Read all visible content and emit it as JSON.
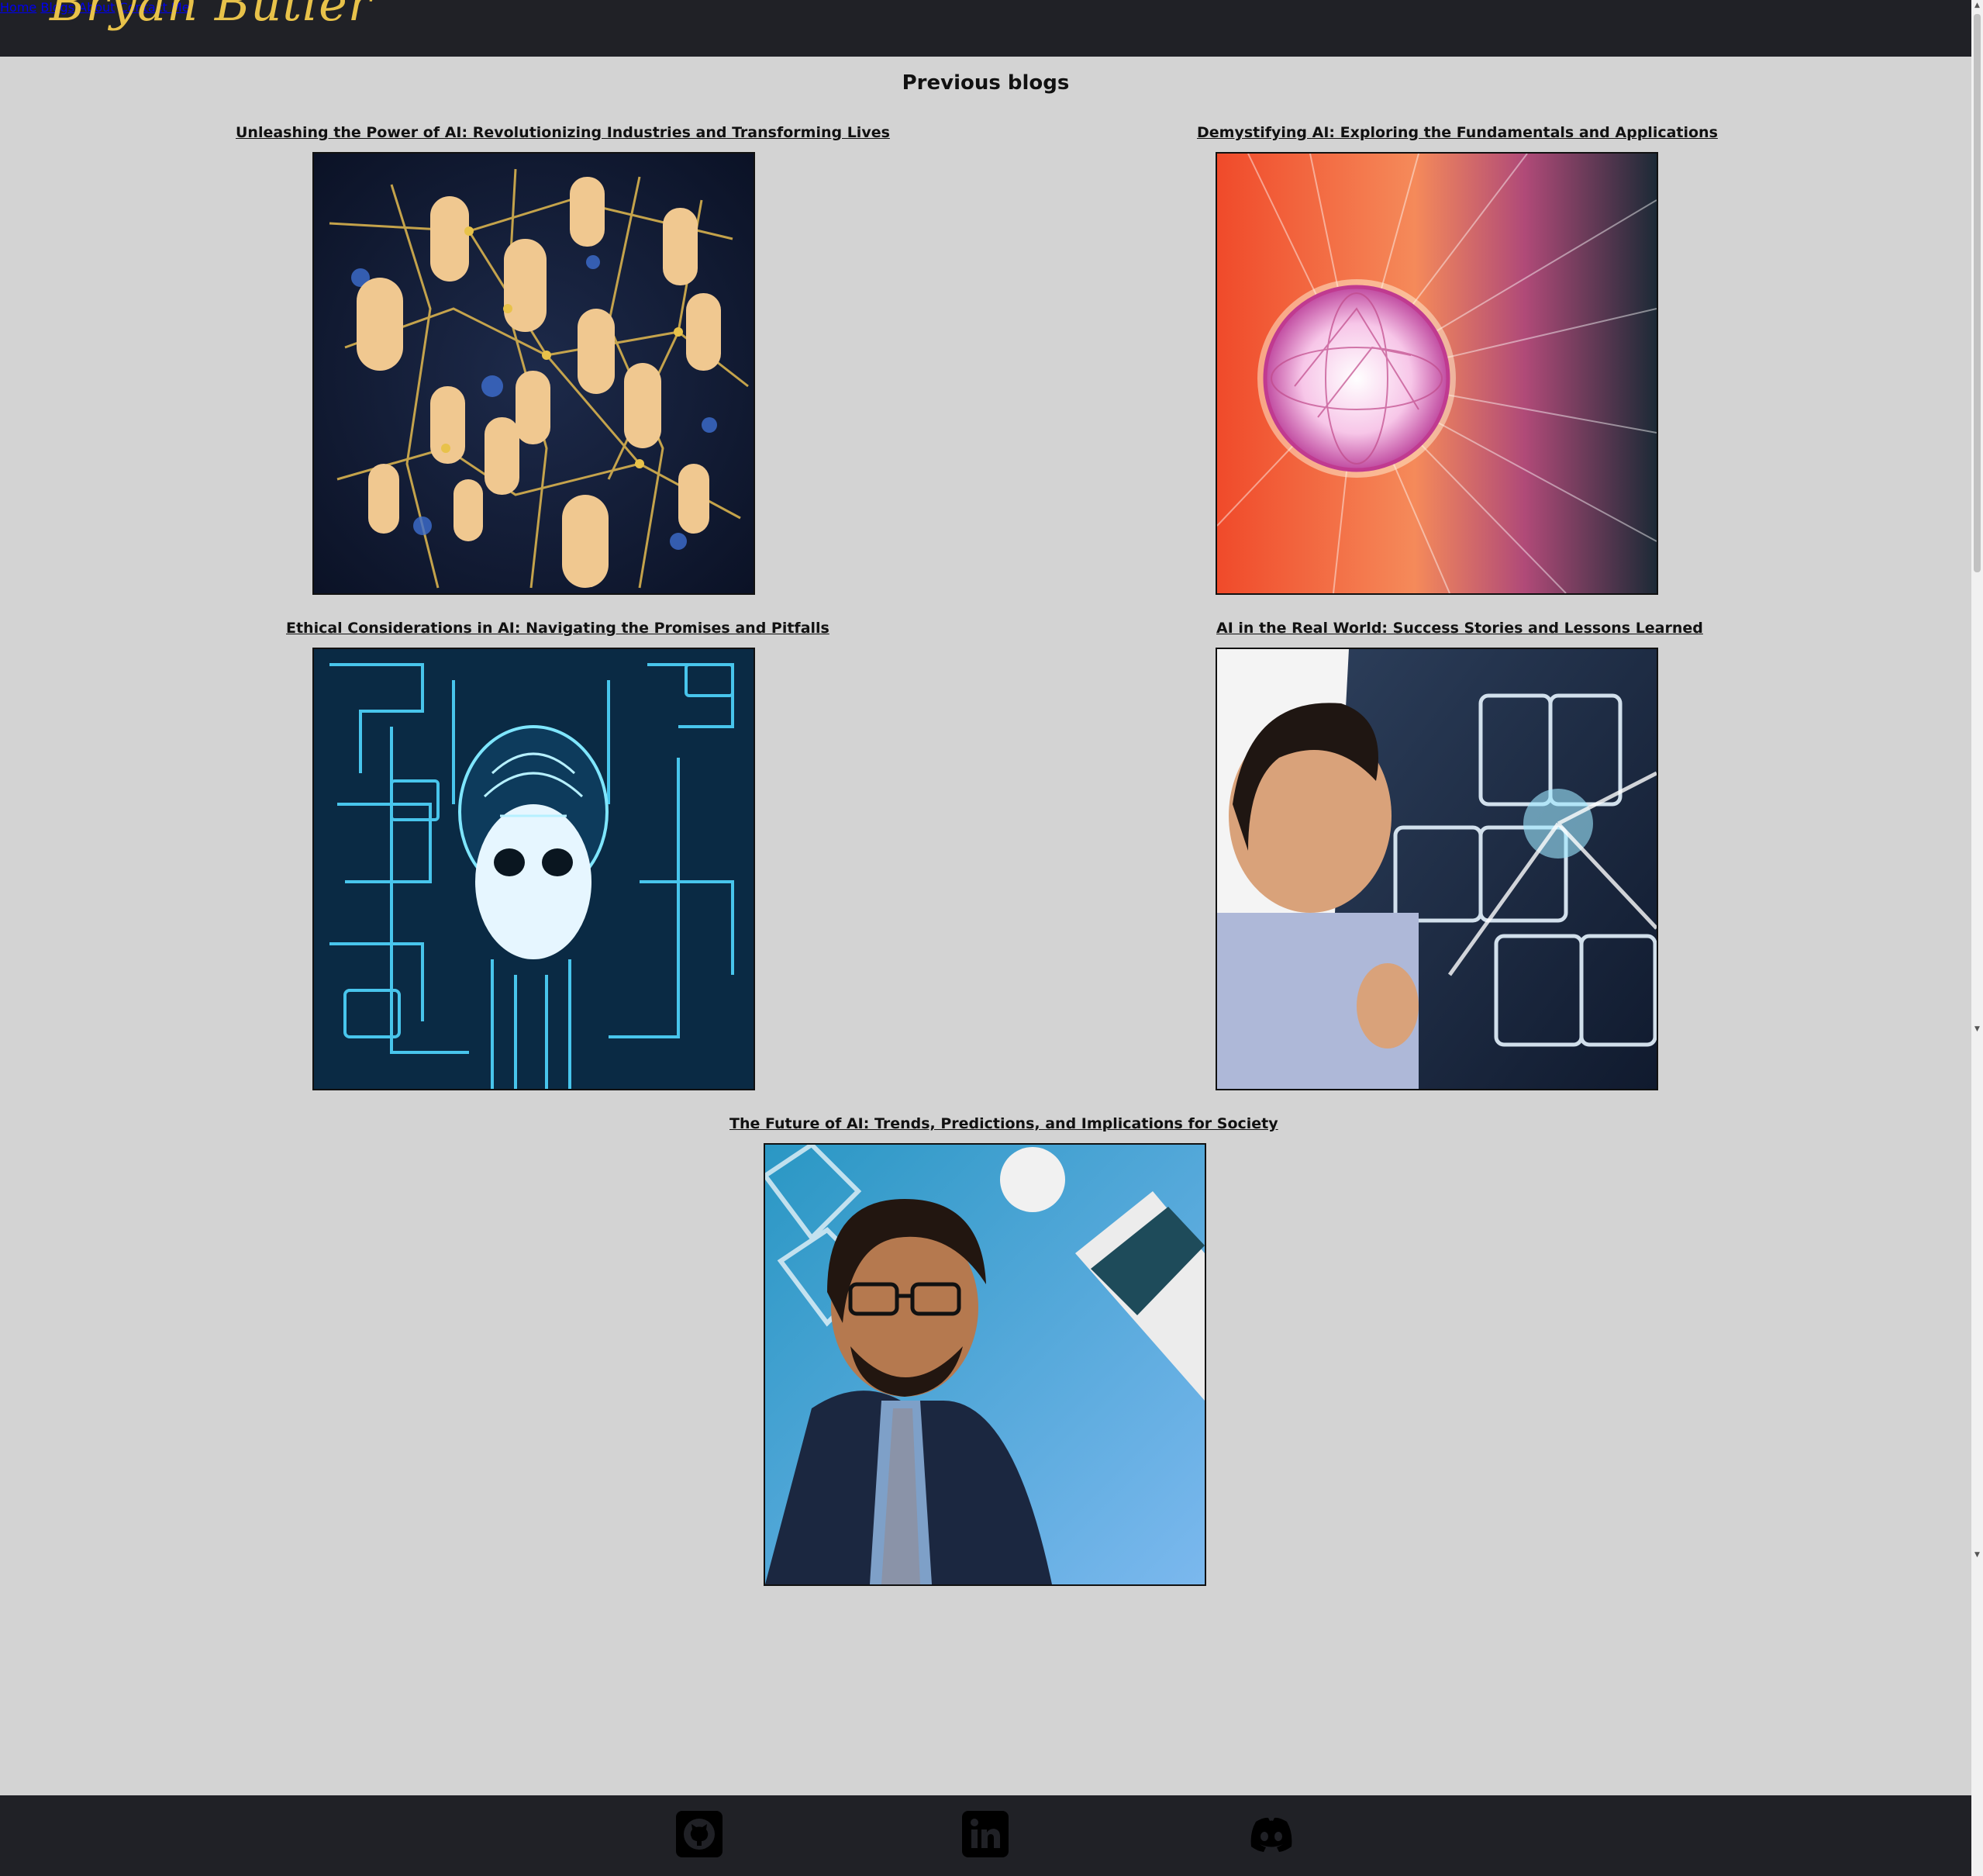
{
  "header": {
    "brand": "Bryan Butler",
    "nav": [
      "Home",
      "Blogs",
      "About",
      "Contact Me"
    ]
  },
  "main": {
    "section_title": "Previous blogs",
    "posts": [
      {
        "title": "Unleashing the Power of AI: Revolutionizing Industries and Transforming Lives",
        "image": "network-of-people-illustration"
      },
      {
        "title": "Demystifying AI: Exploring the Fundamentals and Applications",
        "image": "glowing-sphere-illustration"
      },
      {
        "title": "Ethical Considerations in AI: Navigating the Promises and Pitfalls",
        "image": "circuit-face-illustration"
      },
      {
        "title": "AI in the Real World: Success Stories and Lessons Learned",
        "image": "child-at-screen-photo"
      },
      {
        "title": "The Future of AI: Trends, Predictions, and Implications for Society",
        "image": "speaker-portrait-photo"
      }
    ]
  },
  "footer": {
    "icons": [
      "github-icon",
      "linkedin-icon",
      "discord-icon"
    ]
  },
  "colors": {
    "header_bg": "#202126",
    "accent": "#e8c24a",
    "page_bg": "#d3d3d3"
  }
}
